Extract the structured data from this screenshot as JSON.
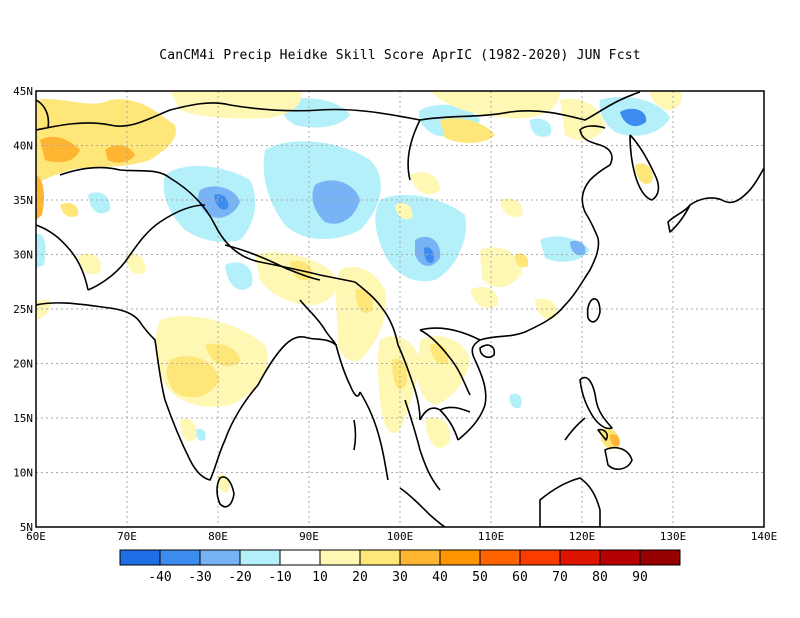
{
  "title": "CanCM4i Precip Heidke Skill Score AprIC (1982-2020) JUN Fcst",
  "map": {
    "lat_labels": [
      "45N",
      "40N",
      "35N",
      "30N",
      "25N",
      "20N",
      "15N",
      "10N",
      "5N"
    ],
    "lat_values": [
      45,
      40,
      35,
      30,
      25,
      20,
      15,
      10,
      5
    ],
    "lon_labels": [
      "60E",
      "70E",
      "80E",
      "90E",
      "100E",
      "110E",
      "120E",
      "130E",
      "140E"
    ],
    "lon_values": [
      60,
      70,
      80,
      90,
      100,
      110,
      120,
      130,
      140
    ],
    "lon_range": [
      60,
      140
    ],
    "lat_range": [
      5,
      45
    ]
  },
  "colorbar": {
    "colors": [
      "#1e6ee6",
      "#3c8cf0",
      "#78b4f5",
      "#b4f0fa",
      "#ffffff",
      "#fff8b4",
      "#ffe678",
      "#ffb432",
      "#ff9600",
      "#ff6400",
      "#fa3c00",
      "#dc1400",
      "#b40000",
      "#960000"
    ],
    "tick_labels": [
      "-40",
      "-30",
      "-20",
      "-10",
      "10",
      "20",
      "30",
      "40",
      "50",
      "60",
      "70",
      "80",
      "90"
    ]
  },
  "chart_data": {
    "type": "heatmap",
    "title": "CanCM4i Precip Heidke Skill Score AprIC (1982-2020) JUN Fcst",
    "x_range": [
      60,
      140
    ],
    "y_range": [
      5,
      45
    ],
    "levels": [
      -40,
      -30,
      -20,
      -10,
      10,
      20,
      30,
      40,
      50,
      60,
      70,
      80,
      90
    ],
    "regions": [
      {
        "lon": 62,
        "lat": 40,
        "value": 30
      },
      {
        "lon": 67,
        "lat": 39,
        "value": 30
      },
      {
        "lon": 72,
        "lat": 39,
        "value": 30
      },
      {
        "lon": 61,
        "lat": 35,
        "value": 30
      },
      {
        "lon": 64,
        "lat": 33,
        "value": -10
      },
      {
        "lon": 79,
        "lat": 35,
        "value": -20
      },
      {
        "lon": 82,
        "lat": 35,
        "value": -30
      },
      {
        "lon": 94,
        "lat": 34,
        "value": -20
      },
      {
        "lon": 98,
        "lat": 33,
        "value": -20
      },
      {
        "lon": 88,
        "lat": 38,
        "value": -10
      },
      {
        "lon": 103,
        "lat": 30,
        "value": -20
      },
      {
        "lon": 103,
        "lat": 29,
        "value": -30
      },
      {
        "lon": 124,
        "lat": 42,
        "value": -20
      },
      {
        "lon": 118,
        "lat": 30,
        "value": -10
      },
      {
        "lon": 78,
        "lat": 18,
        "value": 20
      },
      {
        "lon": 76,
        "lat": 17,
        "value": 30
      },
      {
        "lon": 81,
        "lat": 21,
        "value": 20
      },
      {
        "lon": 100,
        "lat": 17,
        "value": 20
      },
      {
        "lon": 103,
        "lat": 21,
        "value": 20
      },
      {
        "lon": 110,
        "lat": 27,
        "value": 20
      },
      {
        "lon": 88,
        "lat": 26,
        "value": 20
      },
      {
        "lon": 95,
        "lat": 25,
        "value": 20
      },
      {
        "lon": 101,
        "lat": 33,
        "value": 20
      },
      {
        "lon": 113,
        "lat": 42,
        "value": 20
      },
      {
        "lon": 126,
        "lat": 14,
        "value": 40
      },
      {
        "lon": 85,
        "lat": 10,
        "value": -10
      }
    ]
  }
}
